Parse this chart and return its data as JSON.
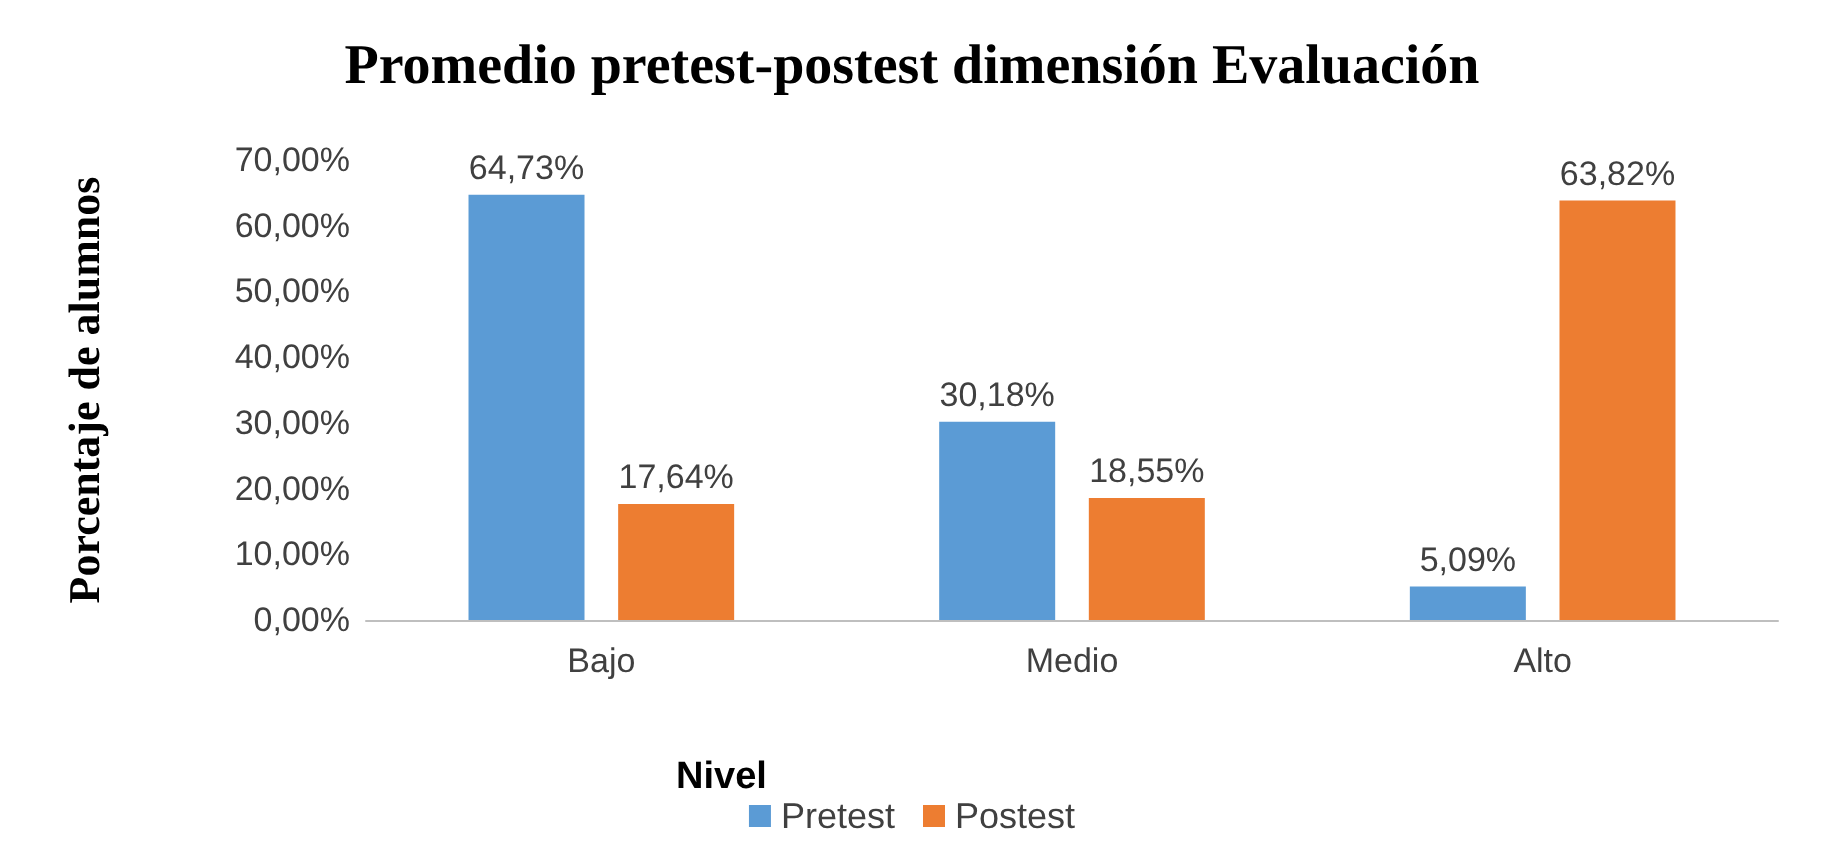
{
  "chart_data": {
    "type": "bar",
    "title": "Promedio pretest-postest dimensión Evaluación",
    "xlabel": "Nivel",
    "ylabel": "Porcentaje de alumnos",
    "categories": [
      "Bajo",
      "Medio",
      "Alto"
    ],
    "series": [
      {
        "name": "Pretest",
        "color": "#5b9bd5",
        "values": [
          64.73,
          30.18,
          5.09
        ],
        "value_labels": [
          "64,73%",
          "30,18%",
          "5,09%"
        ]
      },
      {
        "name": "Postest",
        "color": "#ed7d31",
        "values": [
          17.64,
          18.55,
          63.82
        ],
        "value_labels": [
          "17,64%",
          "18,55%",
          "63,82%"
        ]
      }
    ],
    "ylim": [
      0,
      70
    ],
    "yticks": [
      {
        "value": 0,
        "label": "0,00%"
      },
      {
        "value": 10,
        "label": "10,00%"
      },
      {
        "value": 20,
        "label": "20,00%"
      },
      {
        "value": 30,
        "label": "30,00%"
      },
      {
        "value": 40,
        "label": "40,00%"
      },
      {
        "value": 50,
        "label": "50,00%"
      },
      {
        "value": 60,
        "label": "60,00%"
      },
      {
        "value": 70,
        "label": "70,00%"
      }
    ],
    "grid": false,
    "legend": "bottom"
  }
}
